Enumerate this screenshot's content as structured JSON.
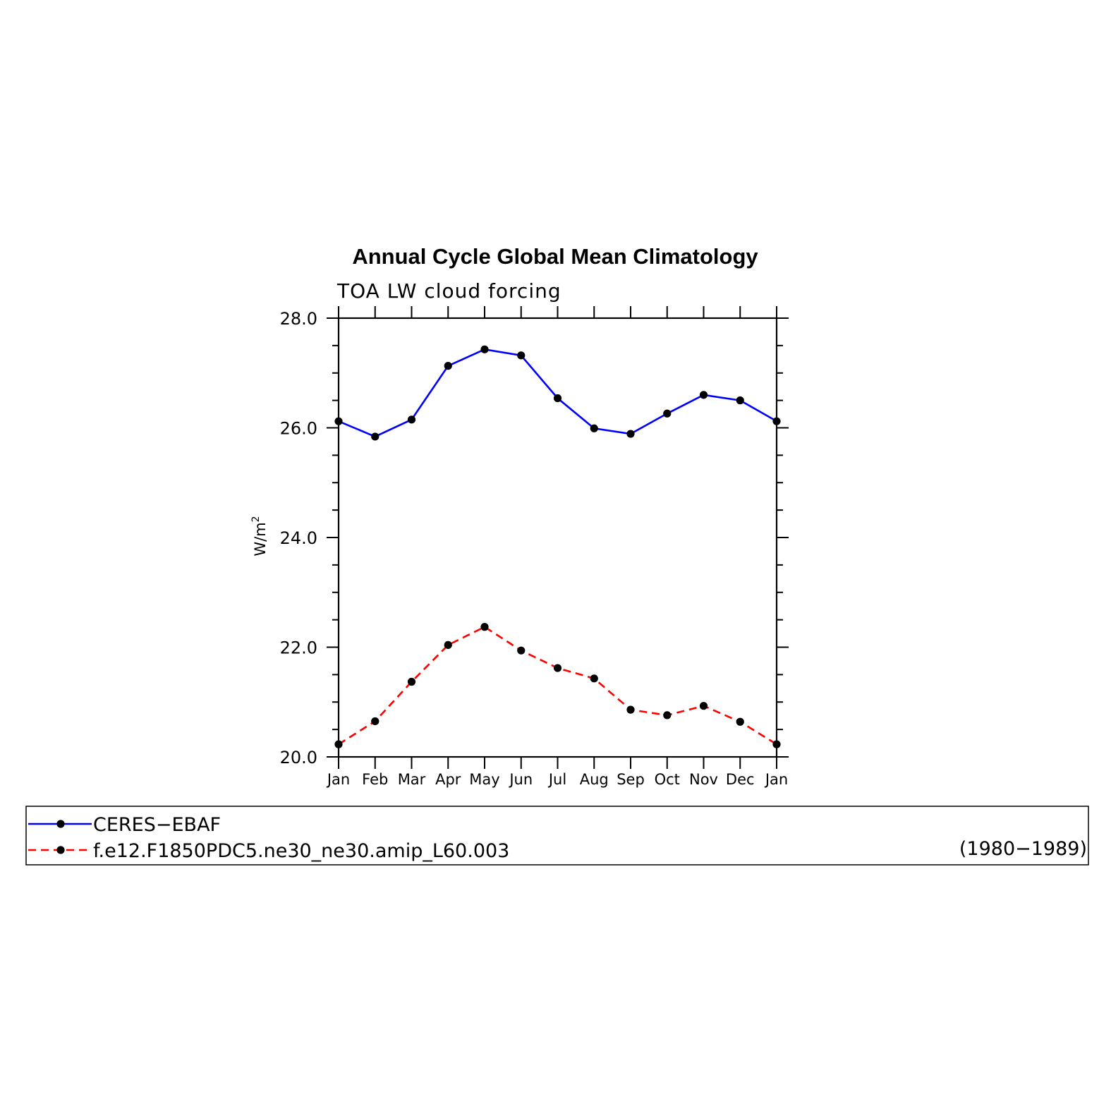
{
  "chart_data": {
    "type": "line",
    "title": "Annual Cycle Global Mean Climatology",
    "subtitle": "TOA LW cloud forcing",
    "ylabel": "W/m",
    "ylabel_superscript": "2",
    "ylim": [
      20.0,
      28.0
    ],
    "yticks": [
      "20.0",
      "22.0",
      "24.0",
      "26.0",
      "28.0"
    ],
    "categories": [
      "Jan",
      "Feb",
      "Mar",
      "Apr",
      "May",
      "Jun",
      "Jul",
      "Aug",
      "Sep",
      "Oct",
      "Nov",
      "Dec",
      "Jan"
    ],
    "grid": false,
    "series": [
      {
        "name": "CERES−EBAF",
        "color": "#0000ff",
        "line_style": "solid",
        "marker": "filled-circle",
        "values": [
          26.12,
          25.84,
          26.15,
          27.13,
          27.43,
          27.32,
          26.54,
          25.99,
          25.89,
          26.26,
          26.6,
          26.5,
          26.12
        ]
      },
      {
        "name": "f.e12.F1850PDC5.ne30_ne30.amip_L60.003",
        "color": "#ff0000",
        "line_style": "dashed",
        "marker": "filled-circle",
        "values": [
          20.23,
          20.65,
          21.37,
          22.04,
          22.37,
          21.94,
          21.62,
          21.43,
          20.86,
          20.76,
          20.93,
          20.64,
          20.23
        ]
      }
    ],
    "legend_note": "(1980−1989)",
    "legend_placement": "bottom"
  }
}
